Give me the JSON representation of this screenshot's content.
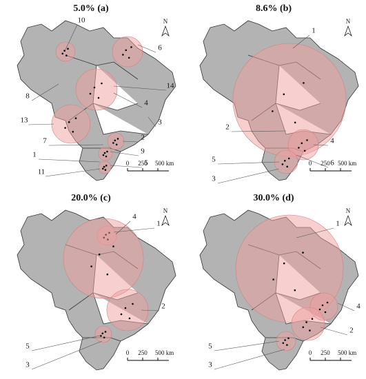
{
  "panels": [
    {
      "title": "5.0% (a)",
      "north": "N",
      "scale": [
        "0",
        "250",
        "500 km"
      ],
      "labels": [
        "10",
        "6",
        "14",
        "4",
        "3",
        "13",
        "8",
        "7",
        "2",
        "9",
        "1",
        "5",
        "11"
      ]
    },
    {
      "title": "8.6% (b)",
      "north": "N",
      "scale": [
        "0",
        "250",
        "500 km"
      ],
      "labels": [
        "1",
        "2",
        "4",
        "5",
        "6",
        "3"
      ]
    },
    {
      "title": "20.0% (c)",
      "north": "N",
      "scale": [
        "0",
        "250",
        "500 km"
      ],
      "labels": [
        "4",
        "1",
        "2",
        "5",
        "3"
      ]
    },
    {
      "title": "30.0% (d)",
      "north": "N",
      "scale": [
        "0",
        "250",
        "500 km"
      ],
      "labels": [
        "1",
        "4",
        "2",
        "5",
        "3"
      ]
    }
  ]
}
